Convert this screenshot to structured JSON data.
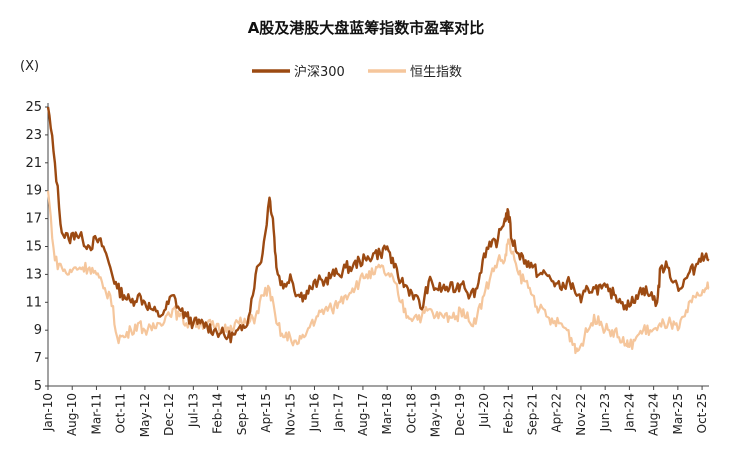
{
  "chart_data": {
    "type": "line",
    "title": "A股及港股大盘蓝筹指数市盈率对比",
    "unit_label": "(X)",
    "ylim": [
      5,
      25
    ],
    "y_ticks": [
      5,
      7,
      9,
      11,
      13,
      15,
      17,
      19,
      21,
      23,
      25
    ],
    "x_tick_labels": [
      "Jan-10",
      "Aug-10",
      "Mar-11",
      "Oct-11",
      "May-12",
      "Dec-12",
      "Jul-13",
      "Feb-14",
      "Sep-14",
      "Apr-15",
      "Nov-15",
      "Jun-16",
      "Jan-17",
      "Aug-17",
      "Mar-18",
      "Oct-18",
      "May-19",
      "Dec-19",
      "Jul-20",
      "Feb-21",
      "Sep-21",
      "Apr-22",
      "Nov-22",
      "Jun-23",
      "Jan-24",
      "Aug-24",
      "Mar-25",
      "Oct-25"
    ],
    "legend_position": "top-center",
    "grid": false,
    "series": [
      {
        "name": "沪深300",
        "color": "#9c4a12",
        "x": [
          "2010-01",
          "2010-03",
          "2010-05",
          "2010-07",
          "2010-09",
          "2010-11",
          "2011-01",
          "2011-03",
          "2011-05",
          "2011-07",
          "2011-09",
          "2011-11",
          "2012-01",
          "2012-03",
          "2012-05",
          "2012-07",
          "2012-09",
          "2012-11",
          "2013-01",
          "2013-03",
          "2013-05",
          "2013-07",
          "2013-09",
          "2013-11",
          "2014-01",
          "2014-03",
          "2014-05",
          "2014-07",
          "2014-09",
          "2014-11",
          "2015-01",
          "2015-03",
          "2015-05",
          "2015-06",
          "2015-07",
          "2015-09",
          "2015-11",
          "2016-01",
          "2016-03",
          "2016-05",
          "2016-07",
          "2016-09",
          "2016-11",
          "2017-01",
          "2017-03",
          "2017-05",
          "2017-07",
          "2017-09",
          "2017-11",
          "2018-01",
          "2018-03",
          "2018-05",
          "2018-07",
          "2018-09",
          "2018-11",
          "2019-01",
          "2019-03",
          "2019-05",
          "2019-07",
          "2019-09",
          "2019-11",
          "2020-01",
          "2020-03",
          "2020-05",
          "2020-07",
          "2020-09",
          "2020-11",
          "2021-01",
          "2021-02",
          "2021-03",
          "2021-05",
          "2021-07",
          "2021-09",
          "2021-11",
          "2022-01",
          "2022-03",
          "2022-05",
          "2022-07",
          "2022-09",
          "2022-11",
          "2023-01",
          "2023-03",
          "2023-05",
          "2023-07",
          "2023-09",
          "2023-11",
          "2024-01",
          "2024-03",
          "2024-05",
          "2024-07",
          "2024-09",
          "2024-10",
          "2024-12",
          "2025-02",
          "2025-04",
          "2025-06",
          "2025-08",
          "2025-10",
          "2025-12"
        ],
        "values": [
          25.0,
          21.0,
          16.0,
          15.5,
          16.0,
          15.5,
          15.0,
          15.5,
          15.0,
          13.5,
          12.0,
          11.5,
          11.0,
          11.5,
          11.0,
          10.5,
          10.0,
          10.5,
          11.5,
          10.5,
          10.0,
          9.5,
          9.5,
          9.3,
          9.0,
          8.8,
          8.5,
          8.7,
          9.0,
          10.0,
          13.0,
          14.5,
          18.5,
          17.0,
          13.5,
          12.0,
          13.0,
          11.5,
          11.5,
          12.0,
          12.5,
          12.5,
          13.0,
          13.0,
          13.5,
          13.5,
          14.0,
          14.0,
          14.5,
          14.5,
          15.0,
          13.5,
          12.5,
          12.0,
          11.5,
          10.5,
          12.5,
          12.0,
          12.0,
          12.0,
          12.0,
          12.5,
          11.5,
          12.0,
          14.5,
          15.0,
          15.5,
          17.0,
          17.5,
          15.5,
          14.5,
          14.0,
          13.5,
          13.0,
          13.0,
          12.5,
          12.0,
          12.5,
          12.0,
          11.0,
          12.0,
          12.0,
          12.0,
          11.8,
          11.5,
          11.0,
          10.7,
          11.5,
          12.0,
          11.5,
          11.0,
          13.5,
          13.5,
          12.5,
          12.0,
          13.0,
          13.5,
          14.5,
          14.0
        ]
      },
      {
        "name": "恒生指数",
        "color": "#f5c69c",
        "x": [
          "2010-01",
          "2010-03",
          "2010-05",
          "2010-07",
          "2010-09",
          "2010-11",
          "2011-01",
          "2011-03",
          "2011-05",
          "2011-07",
          "2011-09",
          "2011-11",
          "2012-01",
          "2012-03",
          "2012-05",
          "2012-07",
          "2012-09",
          "2012-11",
          "2013-01",
          "2013-03",
          "2013-05",
          "2013-07",
          "2013-09",
          "2013-11",
          "2014-01",
          "2014-03",
          "2014-05",
          "2014-07",
          "2014-09",
          "2014-11",
          "2015-01",
          "2015-03",
          "2015-05",
          "2015-07",
          "2015-09",
          "2015-11",
          "2016-01",
          "2016-03",
          "2016-05",
          "2016-07",
          "2016-09",
          "2016-11",
          "2017-01",
          "2017-03",
          "2017-05",
          "2017-07",
          "2017-09",
          "2017-11",
          "2018-01",
          "2018-03",
          "2018-05",
          "2018-07",
          "2018-09",
          "2018-11",
          "2019-01",
          "2019-03",
          "2019-05",
          "2019-07",
          "2019-09",
          "2019-11",
          "2020-01",
          "2020-03",
          "2020-05",
          "2020-07",
          "2020-09",
          "2020-11",
          "2021-01",
          "2021-02",
          "2021-03",
          "2021-05",
          "2021-07",
          "2021-09",
          "2021-11",
          "2022-01",
          "2022-03",
          "2022-05",
          "2022-07",
          "2022-09",
          "2022-10",
          "2022-12",
          "2023-02",
          "2023-04",
          "2023-06",
          "2023-08",
          "2023-10",
          "2023-12",
          "2024-01",
          "2024-03",
          "2024-05",
          "2024-07",
          "2024-09",
          "2024-11",
          "2025-01",
          "2025-03",
          "2025-05",
          "2025-07",
          "2025-09",
          "2025-11",
          "2025-12"
        ],
        "values": [
          19.0,
          14.0,
          13.5,
          13.0,
          13.5,
          13.5,
          13.5,
          13.0,
          12.0,
          11.5,
          8.5,
          8.5,
          9.0,
          9.5,
          9.0,
          9.0,
          9.5,
          10.0,
          10.5,
          10.0,
          9.5,
          9.5,
          9.5,
          9.5,
          9.2,
          9.0,
          9.2,
          9.5,
          9.5,
          9.5,
          10.0,
          11.5,
          12.0,
          9.5,
          8.5,
          8.5,
          8.0,
          8.5,
          9.5,
          10.0,
          10.5,
          10.5,
          11.0,
          11.5,
          12.0,
          12.5,
          13.0,
          13.0,
          13.5,
          13.0,
          12.5,
          11.0,
          10.0,
          10.0,
          10.0,
          10.5,
          10.0,
          10.0,
          10.0,
          10.0,
          10.5,
          9.5,
          10.0,
          11.5,
          13.0,
          14.0,
          14.0,
          15.5,
          14.5,
          13.0,
          12.5,
          11.5,
          10.5,
          10.0,
          9.5,
          9.5,
          9.0,
          8.0,
          7.5,
          8.5,
          9.5,
          10.0,
          9.0,
          9.0,
          8.5,
          8.0,
          7.8,
          8.5,
          9.0,
          9.0,
          9.0,
          9.5,
          9.5,
          9.0,
          10.0,
          11.0,
          11.5,
          12.0,
          12.0
        ]
      }
    ]
  }
}
